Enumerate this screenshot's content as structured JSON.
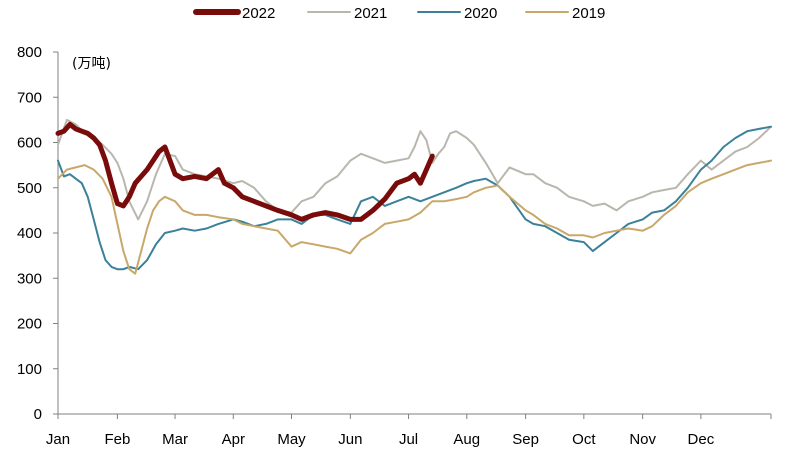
{
  "chart_data": {
    "type": "line",
    "title": "",
    "unit_label": "(万吨)",
    "xlabel": "",
    "ylabel": "",
    "ylim": [
      0,
      800
    ],
    "yticks": [
      0,
      100,
      200,
      300,
      400,
      500,
      600,
      700,
      800
    ],
    "xlim": [
      0,
      12
    ],
    "month_ticks": [
      "Jan",
      "Feb",
      "Mar",
      "Apr",
      "May",
      "Jun",
      "Jul",
      "Aug",
      "Sep",
      "Oct",
      "Nov",
      "Dec"
    ],
    "month_positions": [
      0,
      1.0,
      1.97,
      2.95,
      3.93,
      4.92,
      5.9,
      6.88,
      7.87,
      8.85,
      9.84,
      10.82
    ],
    "grid": false,
    "legend_position": "top",
    "series": [
      {
        "name": "2021",
        "color": "#b9b7ad",
        "x": [
          0,
          0.15,
          0.3,
          0.45,
          0.6,
          0.75,
          0.9,
          1.0,
          1.1,
          1.2,
          1.35,
          1.5,
          1.65,
          1.8,
          1.97,
          2.1,
          2.3,
          2.5,
          2.7,
          2.95,
          3.1,
          3.3,
          3.5,
          3.7,
          3.93,
          4.1,
          4.3,
          4.5,
          4.7,
          4.92,
          5.1,
          5.3,
          5.5,
          5.7,
          5.9,
          6.0,
          6.1,
          6.2,
          6.3,
          6.4,
          6.5,
          6.6,
          6.7,
          6.88,
          7.0,
          7.2,
          7.4,
          7.6,
          7.87,
          8.0,
          8.2,
          8.4,
          8.6,
          8.85,
          9.0,
          9.2,
          9.4,
          9.6,
          9.84,
          10.0,
          10.2,
          10.4,
          10.6,
          10.82,
          11.0,
          11.2,
          11.4,
          11.6,
          11.8,
          12.0
        ],
        "values": [
          595,
          650,
          640,
          620,
          610,
          595,
          575,
          555,
          520,
          470,
          430,
          470,
          530,
          575,
          570,
          540,
          530,
          525,
          520,
          510,
          515,
          500,
          470,
          450,
          445,
          470,
          480,
          510,
          525,
          560,
          575,
          565,
          555,
          560,
          565,
          590,
          625,
          605,
          555,
          575,
          590,
          620,
          625,
          610,
          595,
          555,
          510,
          545,
          530,
          530,
          510,
          500,
          480,
          470,
          460,
          465,
          450,
          470,
          480,
          490,
          495,
          500,
          530,
          560,
          540,
          560,
          580,
          590,
          610,
          635
        ]
      },
      {
        "name": "2020",
        "color": "#3a8199",
        "x": [
          0,
          0.1,
          0.2,
          0.3,
          0.4,
          0.5,
          0.6,
          0.7,
          0.8,
          0.9,
          1.0,
          1.1,
          1.2,
          1.35,
          1.5,
          1.65,
          1.8,
          1.97,
          2.1,
          2.3,
          2.5,
          2.7,
          2.95,
          3.1,
          3.3,
          3.5,
          3.7,
          3.93,
          4.1,
          4.3,
          4.5,
          4.7,
          4.92,
          5.1,
          5.3,
          5.5,
          5.7,
          5.9,
          6.1,
          6.3,
          6.5,
          6.7,
          6.88,
          7.0,
          7.2,
          7.4,
          7.6,
          7.87,
          8.0,
          8.2,
          8.4,
          8.6,
          8.85,
          9.0,
          9.2,
          9.4,
          9.6,
          9.84,
          10.0,
          10.2,
          10.4,
          10.6,
          10.82,
          11.0,
          11.2,
          11.4,
          11.6,
          11.8,
          12.0
        ],
        "values": [
          560,
          525,
          530,
          520,
          510,
          480,
          430,
          380,
          340,
          325,
          320,
          320,
          325,
          320,
          340,
          375,
          400,
          405,
          410,
          405,
          410,
          420,
          430,
          425,
          415,
          420,
          430,
          430,
          420,
          440,
          440,
          430,
          420,
          470,
          480,
          460,
          470,
          480,
          470,
          480,
          490,
          500,
          510,
          515,
          520,
          505,
          480,
          430,
          420,
          415,
          400,
          385,
          380,
          360,
          380,
          400,
          420,
          430,
          445,
          450,
          470,
          500,
          540,
          560,
          590,
          610,
          625,
          630,
          635
        ]
      },
      {
        "name": "2019",
        "color": "#c8a86a",
        "x": [
          0,
          0.15,
          0.3,
          0.45,
          0.6,
          0.75,
          0.9,
          1.0,
          1.1,
          1.2,
          1.3,
          1.4,
          1.5,
          1.6,
          1.7,
          1.8,
          1.97,
          2.1,
          2.3,
          2.5,
          2.7,
          2.95,
          3.1,
          3.3,
          3.5,
          3.7,
          3.93,
          4.1,
          4.3,
          4.5,
          4.7,
          4.92,
          5.1,
          5.3,
          5.5,
          5.7,
          5.9,
          6.1,
          6.3,
          6.5,
          6.7,
          6.88,
          7.0,
          7.2,
          7.4,
          7.6,
          7.87,
          8.0,
          8.2,
          8.4,
          8.6,
          8.85,
          9.0,
          9.2,
          9.4,
          9.6,
          9.84,
          10.0,
          10.2,
          10.4,
          10.6,
          10.82,
          11.0,
          11.2,
          11.4,
          11.6,
          11.8,
          12.0
        ],
        "values": [
          520,
          540,
          545,
          550,
          540,
          520,
          480,
          420,
          360,
          320,
          310,
          360,
          410,
          450,
          470,
          480,
          470,
          450,
          440,
          440,
          435,
          430,
          420,
          415,
          410,
          405,
          370,
          380,
          375,
          370,
          365,
          355,
          385,
          400,
          420,
          425,
          430,
          445,
          470,
          470,
          475,
          480,
          490,
          500,
          505,
          480,
          450,
          440,
          420,
          410,
          395,
          395,
          390,
          400,
          405,
          410,
          405,
          415,
          440,
          460,
          490,
          510,
          520,
          530,
          540,
          550,
          555,
          560
        ]
      },
      {
        "name": "2022",
        "color": "#7a0b0b",
        "x": [
          0,
          0.1,
          0.2,
          0.3,
          0.4,
          0.5,
          0.6,
          0.7,
          0.8,
          0.9,
          1.0,
          1.1,
          1.2,
          1.3,
          1.4,
          1.5,
          1.6,
          1.7,
          1.8,
          1.97,
          2.1,
          2.3,
          2.5,
          2.7,
          2.8,
          2.95,
          3.1,
          3.3,
          3.5,
          3.7,
          3.93,
          4.1,
          4.3,
          4.5,
          4.7,
          4.92,
          5.1,
          5.3,
          5.5,
          5.7,
          5.9,
          6.0,
          6.1,
          6.2,
          6.3
        ],
        "values": [
          620,
          625,
          640,
          630,
          625,
          620,
          610,
          595,
          560,
          510,
          465,
          460,
          480,
          510,
          525,
          540,
          560,
          580,
          590,
          530,
          520,
          525,
          520,
          540,
          510,
          500,
          480,
          470,
          460,
          450,
          440,
          430,
          440,
          445,
          440,
          430,
          430,
          450,
          475,
          510,
          520,
          530,
          510,
          540,
          570
        ]
      }
    ]
  }
}
